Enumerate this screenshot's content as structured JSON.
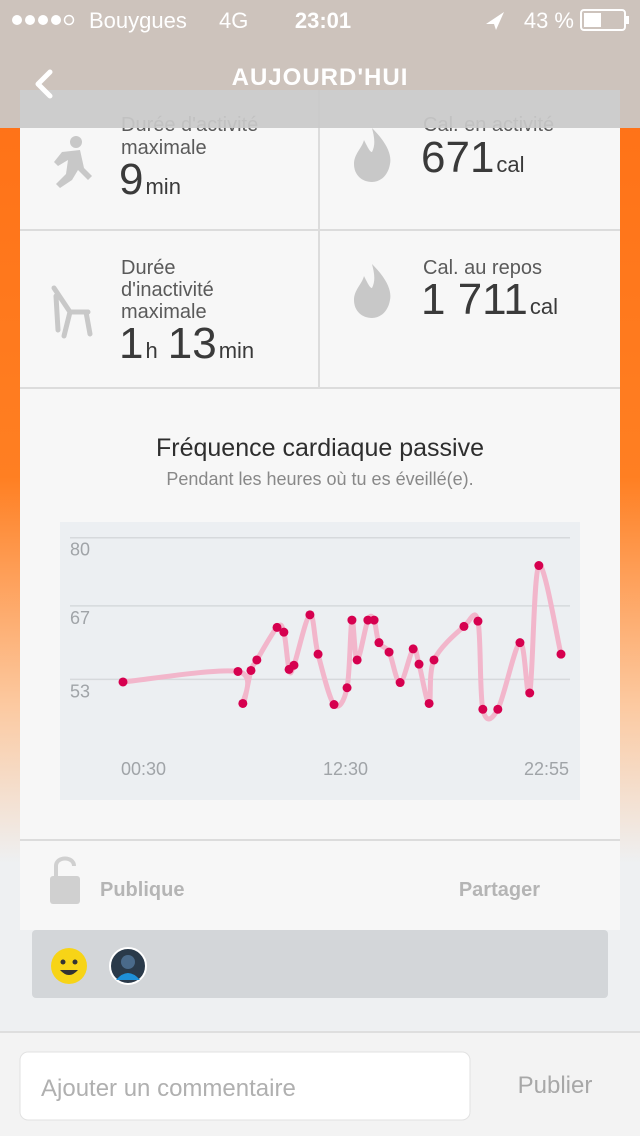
{
  "status_bar": {
    "carrier": "Bouygues",
    "network": "4G",
    "time": "23:01",
    "battery": "43 %"
  },
  "nav": {
    "title": "AUJOURD'HUI"
  },
  "tiles": [
    {
      "label": [
        "Durée d'activité",
        "maximale"
      ],
      "value": 9,
      "unit": "min"
    },
    {
      "label": [
        "Cal. en activité"
      ],
      "value": 671,
      "unit": "cal"
    },
    {
      "label": [
        "Durée",
        "d'inactivité",
        "maximale"
      ],
      "value": 1,
      "unit": "h",
      "value2": 13,
      "unit2": "min"
    },
    {
      "label": [
        "Cal. au repos"
      ],
      "value": "1 711",
      "unit": "cal"
    }
  ],
  "chart_data": {
    "type": "line",
    "title": "Fréquence cardiaque passive",
    "subtitle": "Pendant les heures où tu es éveillé(e).",
    "x": [
      30,
      383,
      398,
      423,
      441,
      503,
      524,
      540,
      555,
      604,
      629,
      678,
      718,
      733,
      749,
      782,
      801,
      816,
      847,
      881,
      921,
      939,
      970,
      985,
      1077,
      1120,
      1135,
      1181,
      1249,
      1279,
      1307,
      1375
    ],
    "series": [
      {
        "name": "Fréquence cardiaque",
        "color": "#d6004f",
        "line_color": "#f2b6cb",
        "values": [
          52.5,
          54.5,
          48.4,
          54.7,
          56.7,
          62.9,
          62,
          54.9,
          55.7,
          65.3,
          57.8,
          48.2,
          51.4,
          64.3,
          56.7,
          64.3,
          64.3,
          60,
          58.2,
          52.4,
          58.8,
          55.9,
          48.4,
          56.7,
          63.1,
          64.1,
          47.3,
          47.3,
          60,
          50.4,
          74.7,
          57.8
        ]
      }
    ],
    "xlim": [
      30,
      1375
    ],
    "xticks": [
      {
        "value": 30,
        "label": "00:30"
      },
      {
        "value": 750,
        "label": "12:30"
      },
      {
        "value": 1375,
        "label": "22:55"
      }
    ],
    "ylim": [
      30,
      83
    ],
    "yticks": [
      80,
      67,
      53
    ],
    "grid": true
  },
  "footer": {
    "privacy": "Publique",
    "share": "Partager"
  },
  "comment": {
    "placeholder": "Ajouter un commentaire",
    "submit": "Publier"
  }
}
